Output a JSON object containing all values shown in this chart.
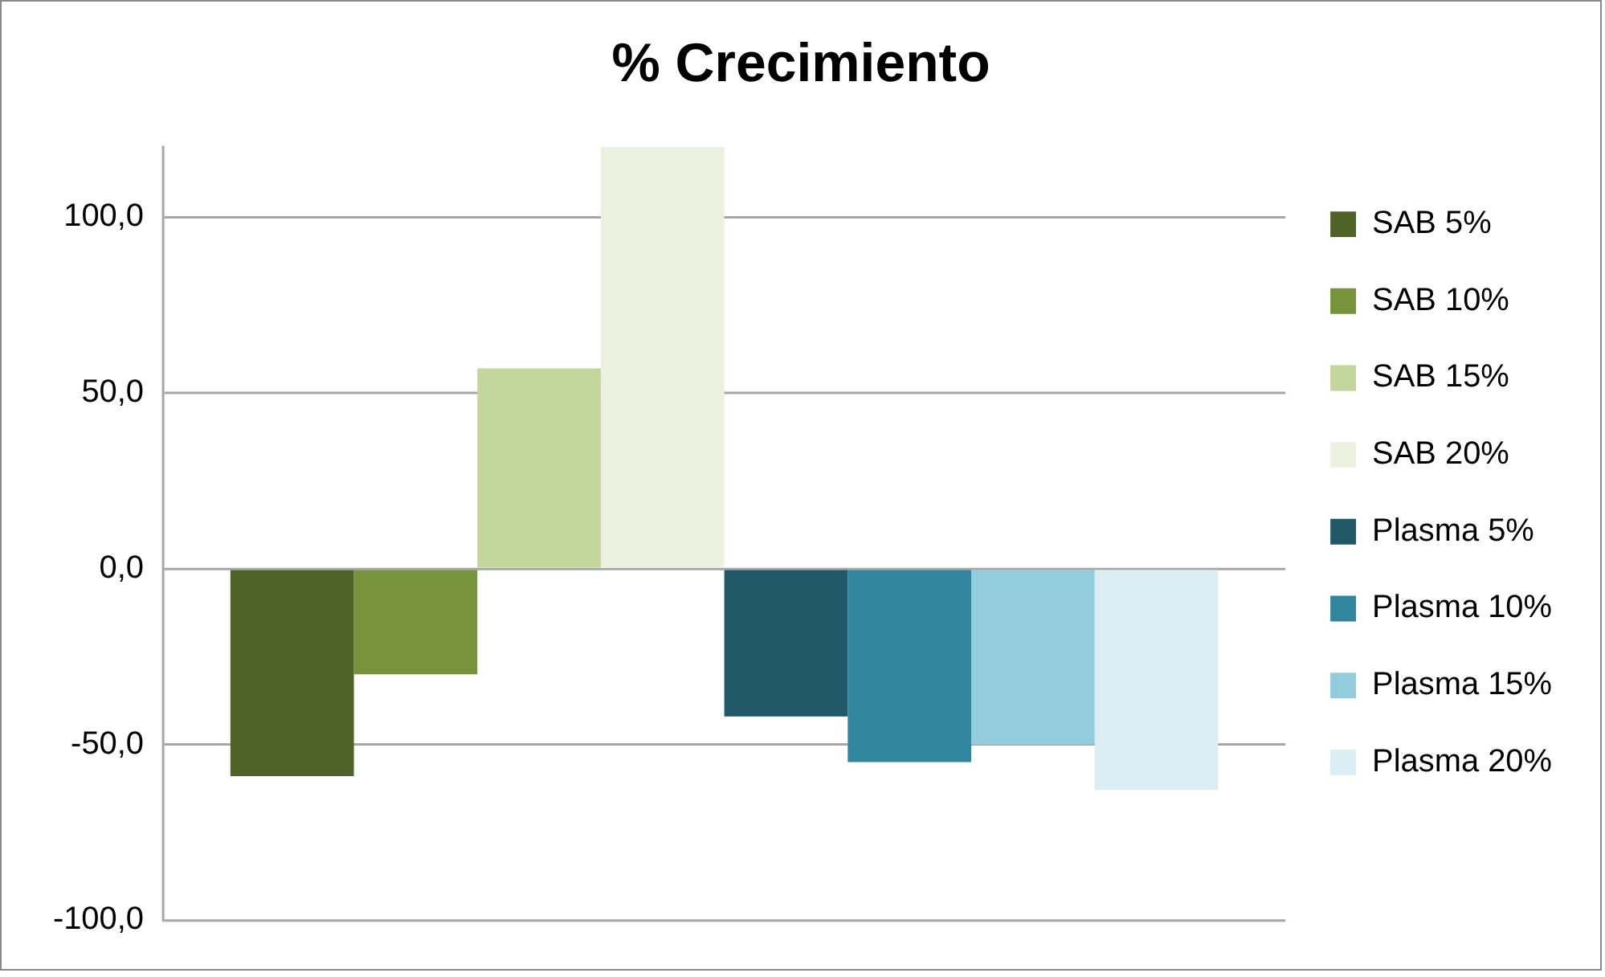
{
  "chart_data": {
    "type": "bar",
    "title": "% Crecimiento",
    "categories": [
      null
    ],
    "series": [
      {
        "name": "SAB 5%",
        "color": "#4f6228",
        "values": [
          -59
        ]
      },
      {
        "name": "SAB 10%",
        "color": "#77933c",
        "values": [
          -30
        ]
      },
      {
        "name": "SAB 15%",
        "color": "#c3d69b",
        "values": [
          57
        ]
      },
      {
        "name": "SAB 20%",
        "color": "#ebf1de",
        "values": [
          120
        ]
      },
      {
        "name": "Plasma 5%",
        "color": "#215968",
        "values": [
          -42
        ]
      },
      {
        "name": "Plasma 10%",
        "color": "#31859c",
        "values": [
          -55
        ]
      },
      {
        "name": "Plasma 15%",
        "color": "#93cddd",
        "values": [
          -50
        ]
      },
      {
        "name": "Plasma 20%",
        "color": "#dbeef4",
        "values": [
          -63
        ]
      }
    ],
    "ylim": [
      -100,
      120
    ],
    "yticks": [
      {
        "value": -100,
        "label": "-100,0"
      },
      {
        "value": -50,
        "label": "-50,0"
      },
      {
        "value": 0,
        "label": "0,0"
      },
      {
        "value": 50,
        "label": "50,0"
      },
      {
        "value": 100,
        "label": "100,0"
      }
    ],
    "grid": "y",
    "legend": "right"
  }
}
